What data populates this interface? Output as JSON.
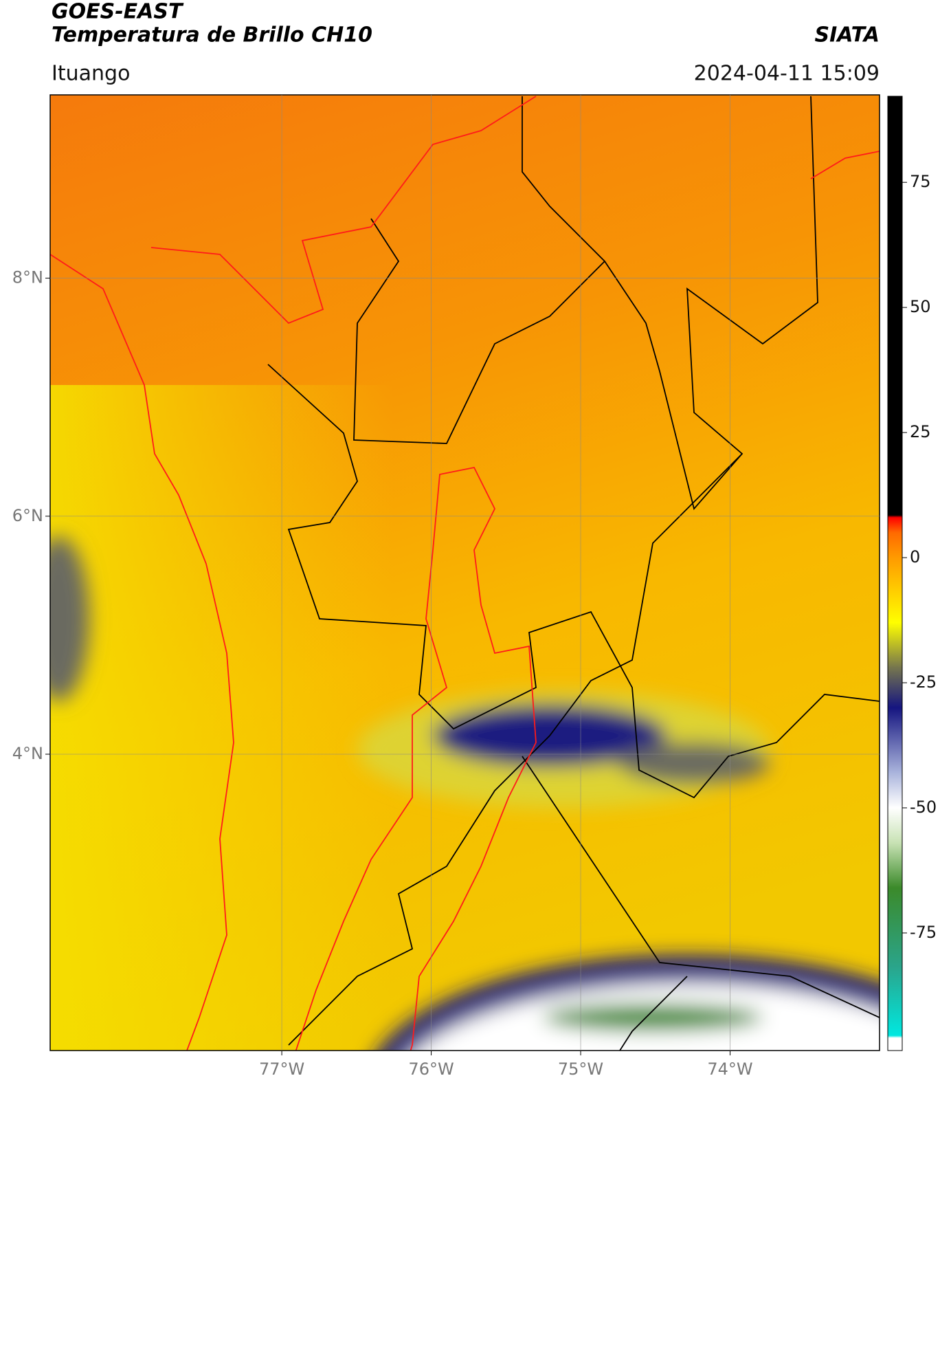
{
  "chart_data": {
    "type": "map",
    "title": "GOES-EAST",
    "subtitle": "Temperatura de Brillo CH10",
    "source": "SIATA",
    "location": "Ituango",
    "timestamp": "2024-04-11 15:09",
    "xlim": [
      -78.55,
      -73.0
    ],
    "ylim": [
      1.51,
      9.54
    ],
    "xticks": [
      {
        "value": -77,
        "label": "77°W"
      },
      {
        "value": -76,
        "label": "76°W"
      },
      {
        "value": -75,
        "label": "75°W"
      },
      {
        "value": -74,
        "label": "74°W"
      }
    ],
    "yticks": [
      {
        "value": 8,
        "label": "8°N"
      },
      {
        "value": 6,
        "label": "6°N"
      },
      {
        "value": 4,
        "label": "4°N"
      }
    ],
    "grid": true,
    "colorbar": {
      "lim": [
        -98.5,
        92.2
      ],
      "ticks": [
        75,
        50,
        25,
        0,
        -25,
        -50,
        -75
      ],
      "stops": [
        {
          "value": -98.5,
          "color": "#ffffff"
        },
        {
          "value": -96,
          "color": "#ffffff"
        },
        {
          "value": -95.5,
          "color": "#00e8e0"
        },
        {
          "value": -82,
          "color": "#2aa58c"
        },
        {
          "value": -66,
          "color": "#3b8a2a"
        },
        {
          "value": -57,
          "color": "#c8e2b4"
        },
        {
          "value": -50,
          "color": "#ffffff"
        },
        {
          "value": -43,
          "color": "#aab4dc"
        },
        {
          "value": -30,
          "color": "#151580"
        },
        {
          "value": -22,
          "color": "#75754e"
        },
        {
          "value": -13,
          "color": "#ffff00"
        },
        {
          "value": 0,
          "color": "#ff9a00"
        },
        {
          "value": 5,
          "color": "#ff6a00"
        },
        {
          "value": 8,
          "color": "#ff0000"
        },
        {
          "value": 8.5,
          "color": "#000000"
        },
        {
          "value": 92.2,
          "color": "#000000"
        }
      ]
    }
  }
}
